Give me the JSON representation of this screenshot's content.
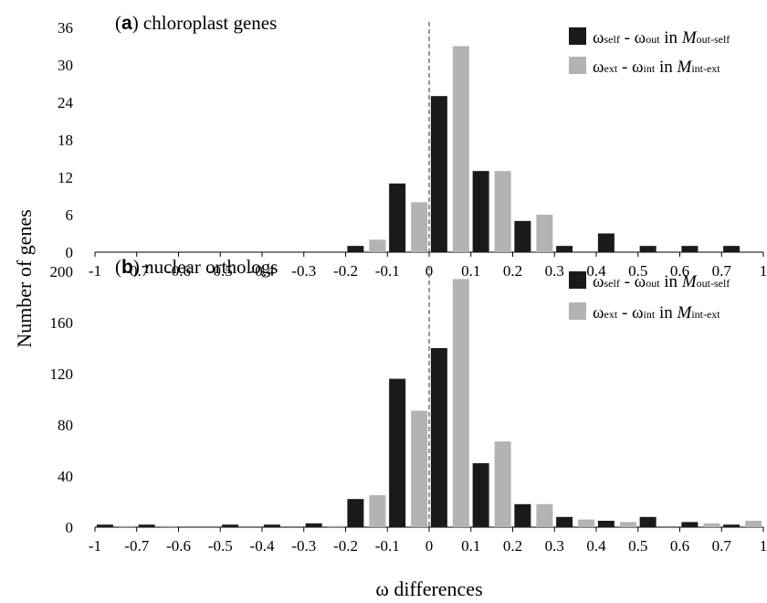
{
  "figure": {
    "ylabel": "Number of genes",
    "xlabel": "ω differences"
  },
  "legend": {
    "entry1": {
      "pre": "ω",
      "sub1": "self",
      "mid": " - ω",
      "sub2": "out",
      "tail": " in ",
      "model": "M",
      "model_sub": "out-self"
    },
    "entry2": {
      "pre": "ω",
      "sub1": "ext",
      "mid": " - ω",
      "sub2": "int",
      "tail": " in ",
      "model": "M",
      "model_sub": "int-ext"
    }
  },
  "colors": {
    "series1": "#1a1a1a",
    "series2": "#b3b3b3",
    "zero_line": "#555555"
  },
  "chart_data": [
    {
      "type": "bar",
      "panel": "a",
      "title_letter": "a",
      "title": "chloroplast genes",
      "x_tick_labels": [
        "-1",
        "-0.7",
        "-0.6",
        "-0.5",
        "-0.4",
        "-0.3",
        "-0.2",
        "-0.1",
        "0",
        "0.1",
        "0.2",
        "0.3",
        "0.4",
        "0.5",
        "0.6",
        "0.7",
        "1"
      ],
      "y_ticks": [
        0,
        6,
        12,
        18,
        24,
        30,
        36
      ],
      "ylim": [
        0,
        36
      ],
      "bins": [
        "-1",
        "-0.7",
        "-0.6",
        "-0.5",
        "-0.4",
        "-0.3",
        "-0.2",
        "-0.1",
        "0",
        "0.1",
        "0.2",
        "0.3",
        "0.4",
        "0.5",
        "0.6",
        "0.7"
      ],
      "series": [
        {
          "values": [
            0,
            0,
            0,
            0,
            0,
            0,
            1,
            11,
            25,
            13,
            5,
            1,
            3,
            1,
            1,
            1
          ]
        },
        {
          "values": [
            0,
            0,
            0,
            0,
            0,
            0,
            2,
            8,
            33,
            13,
            6,
            0,
            0,
            0,
            0,
            0
          ]
        }
      ]
    },
    {
      "type": "bar",
      "panel": "b",
      "title_letter": "b",
      "title": "nuclear orthologs",
      "x_tick_labels": [
        "-1",
        "-0.7",
        "-0.6",
        "-0.5",
        "-0.4",
        "-0.3",
        "-0.2",
        "-0.1",
        "0",
        "0.1",
        "0.2",
        "0.3",
        "0.4",
        "0.5",
        "0.6",
        "0.7",
        "1"
      ],
      "y_ticks": [
        0,
        40,
        80,
        120,
        160,
        200
      ],
      "ylim": [
        0,
        200
      ],
      "bins": [
        "-1",
        "-0.7",
        "-0.6",
        "-0.5",
        "-0.4",
        "-0.3",
        "-0.2",
        "-0.1",
        "0",
        "0.1",
        "0.2",
        "0.3",
        "0.4",
        "0.5",
        "0.6",
        "0.7"
      ],
      "series": [
        {
          "values": [
            2,
            2,
            0,
            2,
            2,
            3,
            22,
            116,
            140,
            50,
            18,
            8,
            5,
            8,
            4,
            2
          ]
        },
        {
          "values": [
            1,
            1,
            0,
            0,
            0,
            1,
            25,
            91,
            194,
            67,
            18,
            6,
            4,
            0,
            3,
            5
          ]
        }
      ]
    }
  ]
}
